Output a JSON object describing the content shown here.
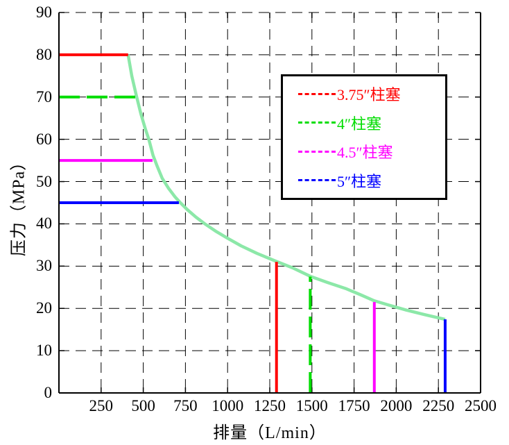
{
  "page": {
    "background": "#ffffff"
  },
  "chart_data": {
    "type": "line",
    "title": "",
    "xlabel": "排量（L/min）",
    "ylabel": "压力（MPa）",
    "xlim": [
      0,
      2500
    ],
    "ylim": [
      0,
      90
    ],
    "xticks": [
      250,
      500,
      750,
      1000,
      1250,
      1500,
      1750,
      2000,
      2250,
      2500
    ],
    "yticks": [
      0,
      10,
      20,
      30,
      40,
      50,
      60,
      70,
      80,
      90
    ],
    "grid": true,
    "grid_style": "dashed",
    "axis_color": "#000000",
    "legend_position": "upper-right-inside",
    "series": [
      {
        "name": "power-envelope-curve",
        "color": "#8ce8a8",
        "width": 4.5,
        "dash": false,
        "points": [
          [
            410,
            80
          ],
          [
            432,
            75
          ],
          [
            458,
            70.5
          ],
          [
            486,
            66
          ],
          [
            512,
            62.5
          ],
          [
            533,
            60
          ],
          [
            558,
            56.2
          ],
          [
            583,
            53.6
          ],
          [
            612,
            50.8
          ],
          [
            650,
            48.4
          ],
          [
            688,
            46.4
          ],
          [
            715,
            45.2
          ],
          [
            760,
            43.4
          ],
          [
            812,
            41.6
          ],
          [
            865,
            40
          ],
          [
            928,
            38.3
          ],
          [
            1000,
            36.6
          ],
          [
            1080,
            34.8
          ],
          [
            1175,
            33
          ],
          [
            1290,
            31.1
          ],
          [
            1385,
            29.6
          ],
          [
            1490,
            27.6
          ],
          [
            1595,
            26.1
          ],
          [
            1700,
            24.7
          ],
          [
            1790,
            23.2
          ],
          [
            1870,
            21.8
          ],
          [
            1955,
            20.8
          ],
          [
            2060,
            19.6
          ],
          [
            2170,
            18.5
          ],
          [
            2290,
            17.4
          ]
        ]
      },
      {
        "name": "plunger-3.75in-max-pressure-line",
        "color": "#ff0000",
        "width": 4,
        "dash": false,
        "points": [
          [
            0,
            80
          ],
          [
            410,
            80
          ]
        ]
      },
      {
        "name": "plunger-4in-max-pressure-line",
        "color": "#00dd00",
        "width": 4,
        "dash": true,
        "points": [
          [
            0,
            70
          ],
          [
            460,
            70
          ]
        ]
      },
      {
        "name": "plunger-4.5in-max-pressure-line",
        "color": "#ff00ff",
        "width": 4,
        "dash": false,
        "points": [
          [
            0,
            55
          ],
          [
            555,
            55
          ]
        ]
      },
      {
        "name": "plunger-5in-max-pressure-line",
        "color": "#0000ff",
        "width": 4,
        "dash": false,
        "points": [
          [
            0,
            45
          ],
          [
            711,
            45
          ]
        ]
      },
      {
        "name": "plunger-3.75in-max-flow-line",
        "color": "#ff0000",
        "width": 4,
        "dash": false,
        "points": [
          [
            1290,
            0
          ],
          [
            1290,
            31
          ]
        ]
      },
      {
        "name": "plunger-4in-max-flow-line",
        "color": "#00dd00",
        "width": 4,
        "dash": true,
        "points": [
          [
            1490,
            0
          ],
          [
            1490,
            27.5
          ]
        ]
      },
      {
        "name": "plunger-4.5in-max-flow-line",
        "color": "#ff00ff",
        "width": 4,
        "dash": false,
        "points": [
          [
            1870,
            0
          ],
          [
            1870,
            21.5
          ]
        ]
      },
      {
        "name": "plunger-5in-max-flow-line",
        "color": "#0000ff",
        "width": 4,
        "dash": false,
        "points": [
          [
            2290,
            0
          ],
          [
            2290,
            17.4
          ]
        ]
      }
    ],
    "legend": [
      {
        "label": "3.75″柱塞",
        "color": "#ff0000"
      },
      {
        "label": "4″柱塞",
        "color": "#00dd00"
      },
      {
        "label": "4.5″柱塞",
        "color": "#ff00ff"
      },
      {
        "label": "5″柱塞",
        "color": "#0000ff"
      }
    ]
  }
}
